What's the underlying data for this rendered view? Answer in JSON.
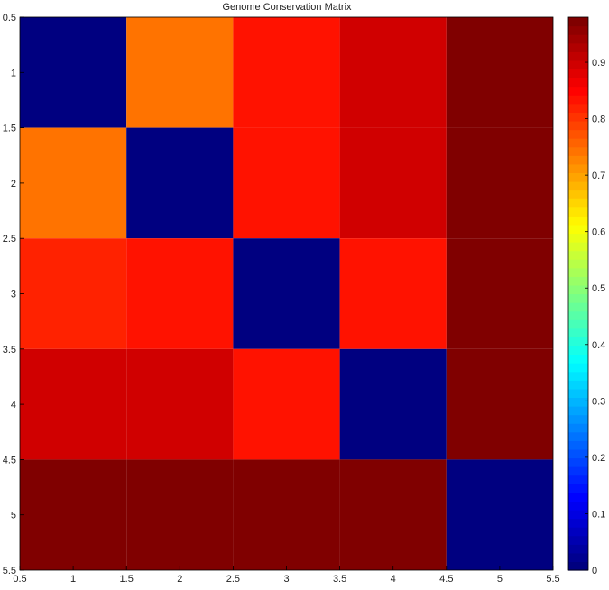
{
  "chart_data": {
    "type": "heatmap",
    "title": "Genome Conservation Matrix",
    "xlabel": "",
    "ylabel": "",
    "x_ticks": [
      "0.5",
      "1",
      "1.5",
      "2",
      "2.5",
      "3",
      "3.5",
      "4",
      "4.5",
      "5",
      "5.5"
    ],
    "y_ticks": [
      "0.5",
      "1",
      "1.5",
      "2",
      "2.5",
      "3",
      "3.5",
      "4",
      "4.5",
      "5",
      "5.5"
    ],
    "xlim": [
      0.5,
      5.5
    ],
    "ylim": [
      0.5,
      5.5
    ],
    "y_reversed": true,
    "matrix": [
      [
        0.0,
        0.74,
        0.84,
        0.9,
        0.98
      ],
      [
        0.74,
        0.0,
        0.84,
        0.9,
        0.98
      ],
      [
        0.82,
        0.84,
        0.0,
        0.84,
        0.98
      ],
      [
        0.9,
        0.9,
        0.84,
        0.0,
        0.98
      ],
      [
        0.98,
        0.98,
        0.98,
        0.98,
        0.0
      ]
    ],
    "colormap": "jet",
    "colorbar": {
      "range": [
        0,
        0.98
      ],
      "ticks": [
        "0",
        "0.1",
        "0.2",
        "0.3",
        "0.4",
        "0.5",
        "0.6",
        "0.7",
        "0.8",
        "0.9"
      ],
      "position": "right"
    },
    "grid": false
  }
}
